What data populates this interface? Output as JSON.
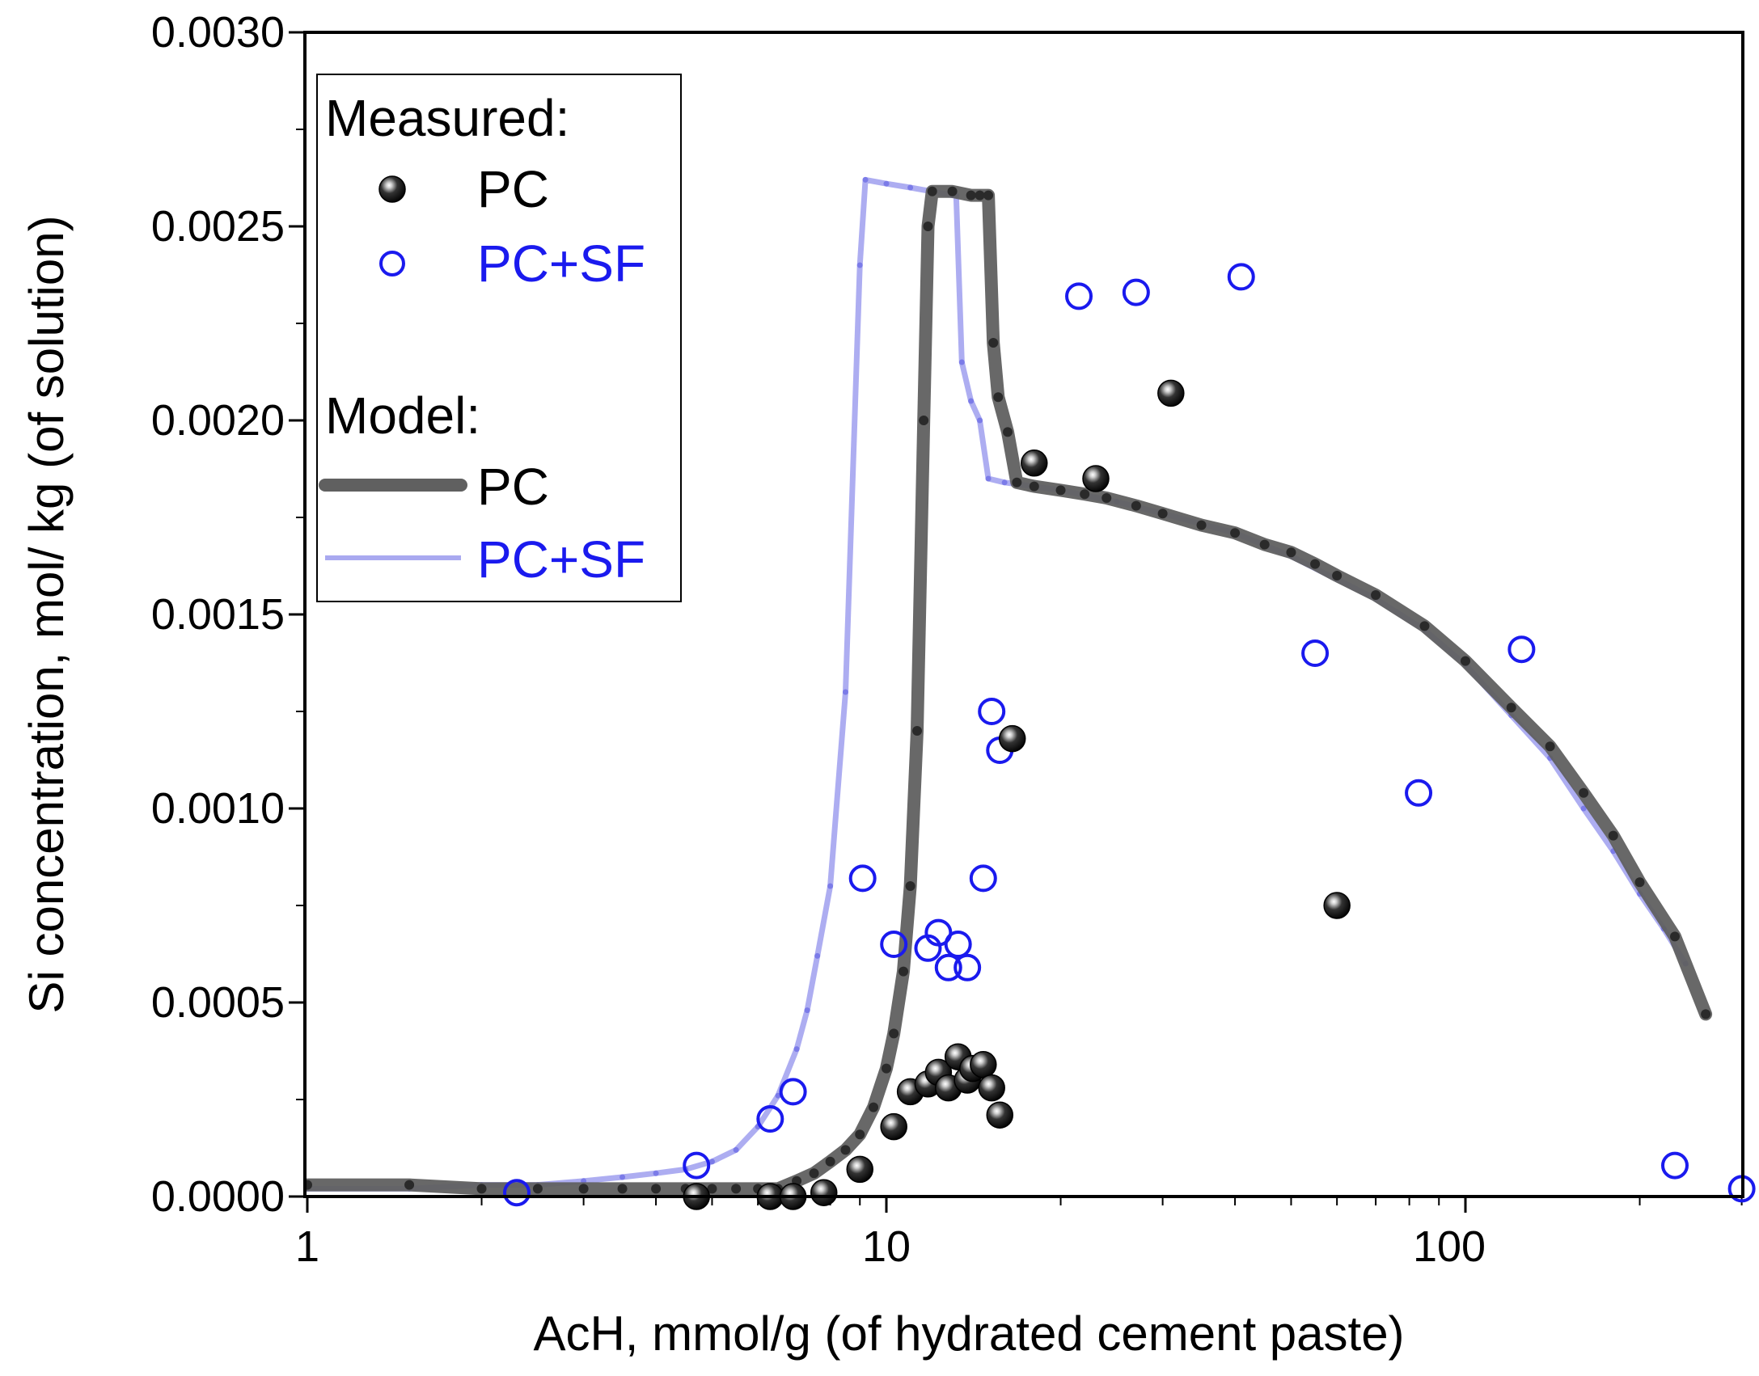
{
  "chart_data": {
    "type": "scatter",
    "xscale": "log",
    "xlim": [
      1,
      310
    ],
    "ylim": [
      0,
      0.003
    ],
    "xlabel": "AcH, mmol/g (of hydrated cement paste)",
    "ylabel": "Si concentration, mol/ kg (of solution)",
    "x_tick_values": [
      1,
      10,
      100
    ],
    "x_tick_labels": [
      "1",
      "10",
      "100"
    ],
    "y_tick_values": [
      0,
      0.0005,
      0.001,
      0.0015,
      0.002,
      0.0025,
      0.003
    ],
    "y_tick_labels": [
      "0.0000",
      "0.0005",
      "0.0010",
      "0.0015",
      "0.0020",
      "0.0025",
      "0.0030"
    ],
    "legend": {
      "position": "top-left",
      "measured_heading": "Measured:",
      "model_heading": "Model:",
      "entries": {
        "measured_pc": "PC",
        "measured_pcsf": "PC+SF",
        "model_pc": "PC",
        "model_pcsf": "PC+SF"
      }
    },
    "colors": {
      "measured_pc": "#111111",
      "measured_pcsf": "#1a1aee",
      "model_pc": "#606060",
      "model_pcsf": "#a9a9f0",
      "label_blue": "#1a1aee"
    },
    "series": [
      {
        "name": "Model PC",
        "kind": "line",
        "x": [
          1.0,
          1.5,
          2.0,
          2.5,
          3.0,
          3.5,
          4.0,
          4.5,
          5.0,
          5.5,
          6.0,
          6.5,
          7.0,
          7.5,
          8.0,
          8.5,
          9.0,
          9.5,
          10.0,
          10.3,
          10.7,
          11.0,
          11.3,
          11.6,
          11.8,
          12.0,
          13.0,
          14.0,
          14.5,
          15.0,
          15.3,
          15.6,
          16.2,
          16.8,
          18.0,
          20.0,
          22.0,
          24.0,
          27.0,
          30.0,
          35.0,
          40.0,
          45.0,
          50.0,
          55.0,
          60.0,
          70.0,
          85.0,
          100.0,
          120.0,
          140.0,
          160.0,
          180.0,
          200.0,
          230.0,
          260.0
        ],
        "y": [
          3e-05,
          3e-05,
          2e-05,
          2e-05,
          2e-05,
          2e-05,
          2e-05,
          2e-05,
          2e-05,
          2e-05,
          2e-05,
          2e-05,
          4e-05,
          6e-05,
          9e-05,
          0.00012,
          0.00016,
          0.00023,
          0.00033,
          0.00042,
          0.00058,
          0.0008,
          0.0012,
          0.002,
          0.0025,
          0.00259,
          0.00259,
          0.00258,
          0.00258,
          0.00258,
          0.0022,
          0.00206,
          0.00197,
          0.00184,
          0.00183,
          0.00182,
          0.00181,
          0.0018,
          0.00178,
          0.00176,
          0.00173,
          0.00171,
          0.00168,
          0.00166,
          0.00163,
          0.0016,
          0.00155,
          0.00147,
          0.00138,
          0.00126,
          0.00116,
          0.00104,
          0.00093,
          0.00081,
          0.00067,
          0.00047
        ]
      },
      {
        "name": "Model PC+SF",
        "kind": "line",
        "x": [
          1.0,
          1.5,
          2.0,
          2.5,
          3.0,
          3.5,
          4.0,
          4.5,
          5.0,
          5.5,
          6.0,
          6.5,
          7.0,
          7.3,
          7.6,
          8.0,
          8.5,
          9.0,
          9.2,
          10.0,
          11.0,
          12.0,
          13.0,
          13.2,
          13.5,
          14.0,
          14.5,
          15.0,
          16.0,
          18.0,
          20.0,
          25.0,
          30.0,
          40.0,
          50.0,
          60.0,
          70.0,
          85.0,
          100.0,
          120.0,
          140.0,
          160.0,
          180.0,
          200.0,
          220.0,
          240.0
        ],
        "y": [
          2e-05,
          2e-05,
          3e-05,
          3e-05,
          4e-05,
          5e-05,
          6e-05,
          7e-05,
          9e-05,
          0.00012,
          0.00018,
          0.00026,
          0.00038,
          0.00048,
          0.00062,
          0.0008,
          0.0013,
          0.0024,
          0.00262,
          0.00261,
          0.0026,
          0.00259,
          0.00258,
          0.00258,
          0.00215,
          0.00205,
          0.002,
          0.00185,
          0.00184,
          0.00183,
          0.00182,
          0.00179,
          0.00176,
          0.00171,
          0.00165,
          0.00159,
          0.00154,
          0.00146,
          0.00137,
          0.00124,
          0.00113,
          0.001,
          0.00089,
          0.00078,
          0.00069,
          0.0006
        ]
      },
      {
        "name": "Measured PC",
        "kind": "scatter",
        "x": [
          4.7,
          6.3,
          6.9,
          7.8,
          9.0,
          10.3,
          11.0,
          11.8,
          12.3,
          12.8,
          13.3,
          13.8,
          14.1,
          14.7,
          15.2,
          15.7,
          16.5,
          18.0,
          23.0,
          31.0,
          60.0
        ],
        "y": [
          0.0,
          0.0,
          0.0,
          1e-05,
          7e-05,
          0.00018,
          0.00027,
          0.00029,
          0.00032,
          0.00028,
          0.00036,
          0.0003,
          0.00033,
          0.00034,
          0.00028,
          0.00021,
          0.00118,
          0.00189,
          0.00185,
          0.00207,
          0.00075
        ]
      },
      {
        "name": "Measured PC+SF",
        "kind": "scatter",
        "x": [
          2.3,
          4.7,
          6.3,
          6.9,
          9.1,
          10.3,
          11.8,
          12.3,
          12.8,
          13.3,
          13.8,
          14.7,
          15.2,
          15.7,
          21.5,
          27.0,
          41.0,
          55.0,
          83.0,
          125.0,
          230.0,
          300.0
        ],
        "y": [
          1e-05,
          8e-05,
          0.0002,
          0.00027,
          0.00082,
          0.00065,
          0.00064,
          0.00068,
          0.00059,
          0.00065,
          0.00059,
          0.00082,
          0.00125,
          0.00115,
          0.00232,
          0.00233,
          0.00237,
          0.0014,
          0.00104,
          0.00141,
          8e-05,
          2e-05
        ]
      }
    ]
  }
}
